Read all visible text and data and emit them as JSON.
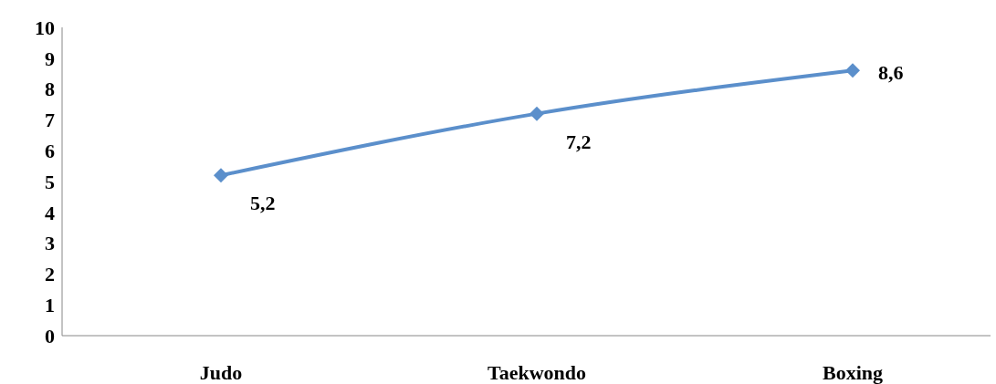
{
  "chart_data": {
    "type": "line",
    "categories": [
      "Judo",
      "Taekwondo",
      "Boxing"
    ],
    "series": [
      {
        "color": "#5b8fcb",
        "values": [
          5.2,
          7.2,
          8.6
        ],
        "value_labels": [
          "5,2",
          "7,2",
          "8,6"
        ]
      }
    ],
    "ylim": [
      0,
      10
    ],
    "yticks": [
      0,
      1,
      2,
      3,
      4,
      5,
      6,
      7,
      8,
      9,
      10
    ],
    "grid": false,
    "legend": false,
    "marker": "diamond",
    "line_style": "solid"
  }
}
